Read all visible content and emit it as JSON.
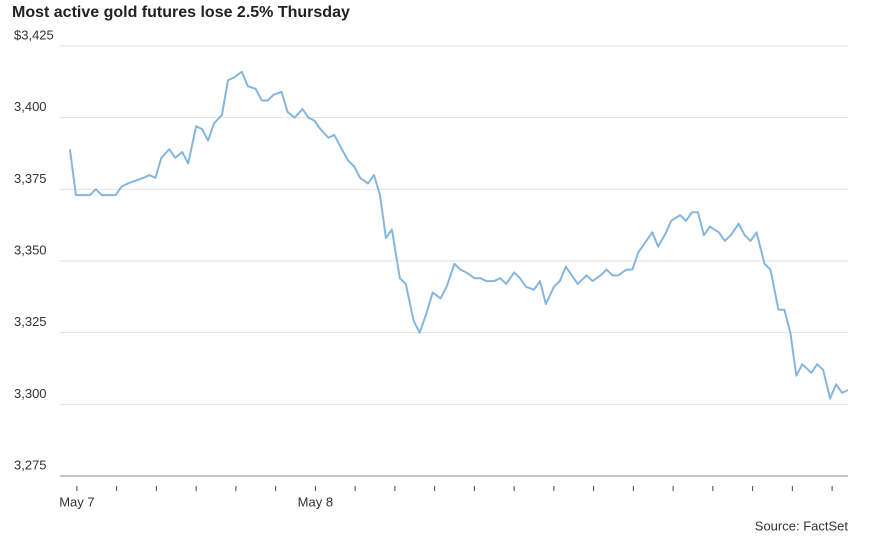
{
  "chart_data": {
    "type": "line",
    "title": "Most active gold futures lose 2.5% Thursday",
    "source": "Source: FactSet",
    "x": [
      -0.7,
      -0.1,
      0.5,
      1.3,
      1.9,
      2.5,
      3.3,
      3.9,
      4.5,
      5.1,
      5.9,
      6.7,
      7.3,
      7.9,
      8.5,
      9.3,
      9.9,
      10.6,
      11.2,
      12.0,
      12.6,
      13.2,
      13.8,
      14.6,
      15.2,
      15.8,
      16.6,
      17.2,
      18.0,
      18.6,
      19.2,
      19.8,
      20.6,
      21.2,
      21.9,
      22.7,
      23.3,
      23.9,
      24.5,
      25.3,
      25.9,
      26.5,
      27.3,
      27.9,
      28.5,
      29.3,
      29.9,
      30.5,
      31.1,
      31.7,
      32.5,
      33.1,
      33.9,
      34.5,
      35.2,
      35.8,
      36.6,
      37.2,
      38.0,
      38.6,
      39.2,
      40.0,
      40.6,
      41.2,
      42.0,
      42.6,
      43.2,
      44.0,
      44.6,
      45.2,
      46.0,
      46.6,
      47.2,
      48.0,
      48.6,
      49.2,
      49.8,
      50.4,
      51.3,
      51.9,
      52.7,
      53.3,
      53.9,
      54.5,
      55.3,
      55.9,
      56.5,
      57.3,
      57.9,
      58.5,
      59.3,
      59.8,
      60.7,
      61.3,
      61.9,
      62.5,
      63.1,
      63.7,
      64.6,
      65.2,
      65.8,
      66.6,
      67.2,
      67.8,
      68.4,
      69.2,
      69.8,
      70.6,
      71.2,
      71.8,
      72.4,
      73.0,
      73.9,
      74.5,
      75.1,
      75.8,
      76.4,
      77.0,
      77.6
    ],
    "series": [
      {
        "color": "#85b6de",
        "values": [
          3389,
          3373,
          3373,
          3373,
          3375,
          3373,
          3373,
          3373,
          3376,
          3377,
          3378,
          3379,
          3380,
          3379,
          3386,
          3389,
          3386,
          3388,
          3384,
          3397,
          3396,
          3392,
          3398,
          3401,
          3413,
          3414,
          3416,
          3411,
          3410,
          3406,
          3406,
          3408,
          3409,
          3402,
          3400,
          3403,
          3400,
          3399,
          3396,
          3393,
          3394,
          3390,
          3385,
          3383,
          3379,
          3377,
          3380,
          3373,
          3358,
          3361,
          3344,
          3342,
          3329,
          3325,
          3332,
          3339,
          3337,
          3341,
          3349,
          3347,
          3346,
          3344,
          3344,
          3343,
          3343,
          3344,
          3342,
          3346,
          3344,
          3341,
          3340,
          3343,
          3335,
          3341,
          3343,
          3348,
          3345,
          3342,
          3345,
          3343,
          3345,
          3347,
          3345,
          3345,
          3347,
          3347,
          3353,
          3357,
          3360,
          3355,
          3360,
          3364,
          3366,
          3364,
          3367,
          3367,
          3359,
          3362,
          3360,
          3357,
          3359,
          3363,
          3359,
          3357,
          3360,
          3349,
          3347,
          3333,
          3333,
          3325,
          3310,
          3314,
          3311,
          3314,
          3312,
          3302,
          3307,
          3304,
          3305
        ]
      }
    ],
    "xlim": [
      -1.7,
      77.6
    ],
    "xticks": [
      {
        "value": 0,
        "label": "May 7"
      },
      {
        "value": 4,
        "label": null
      },
      {
        "value": 8,
        "label": null
      },
      {
        "value": 12,
        "label": null
      },
      {
        "value": 16,
        "label": null
      },
      {
        "value": 20,
        "label": null
      },
      {
        "value": 24,
        "label": "May 8"
      },
      {
        "value": 28,
        "label": null
      },
      {
        "value": 32,
        "label": null
      },
      {
        "value": 36,
        "label": null
      },
      {
        "value": 40,
        "label": null
      },
      {
        "value": 44,
        "label": null
      },
      {
        "value": 48,
        "label": null
      },
      {
        "value": 52,
        "label": null
      },
      {
        "value": 56,
        "label": null
      },
      {
        "value": 60,
        "label": null
      },
      {
        "value": 64,
        "label": null
      },
      {
        "value": 68,
        "label": null
      },
      {
        "value": 72,
        "label": null
      },
      {
        "value": 76,
        "label": null
      }
    ],
    "ylim": [
      3275,
      3425
    ],
    "yticks": [
      {
        "value": 3275,
        "label": "3,275"
      },
      {
        "value": 3300,
        "label": "3,300"
      },
      {
        "value": 3325,
        "label": "3,325"
      },
      {
        "value": 3350,
        "label": "3,350"
      },
      {
        "value": 3375,
        "label": "3,375"
      },
      {
        "value": 3400,
        "label": "3,400"
      },
      {
        "value": 3425,
        "label": "$3,425"
      }
    ],
    "grid": true
  }
}
